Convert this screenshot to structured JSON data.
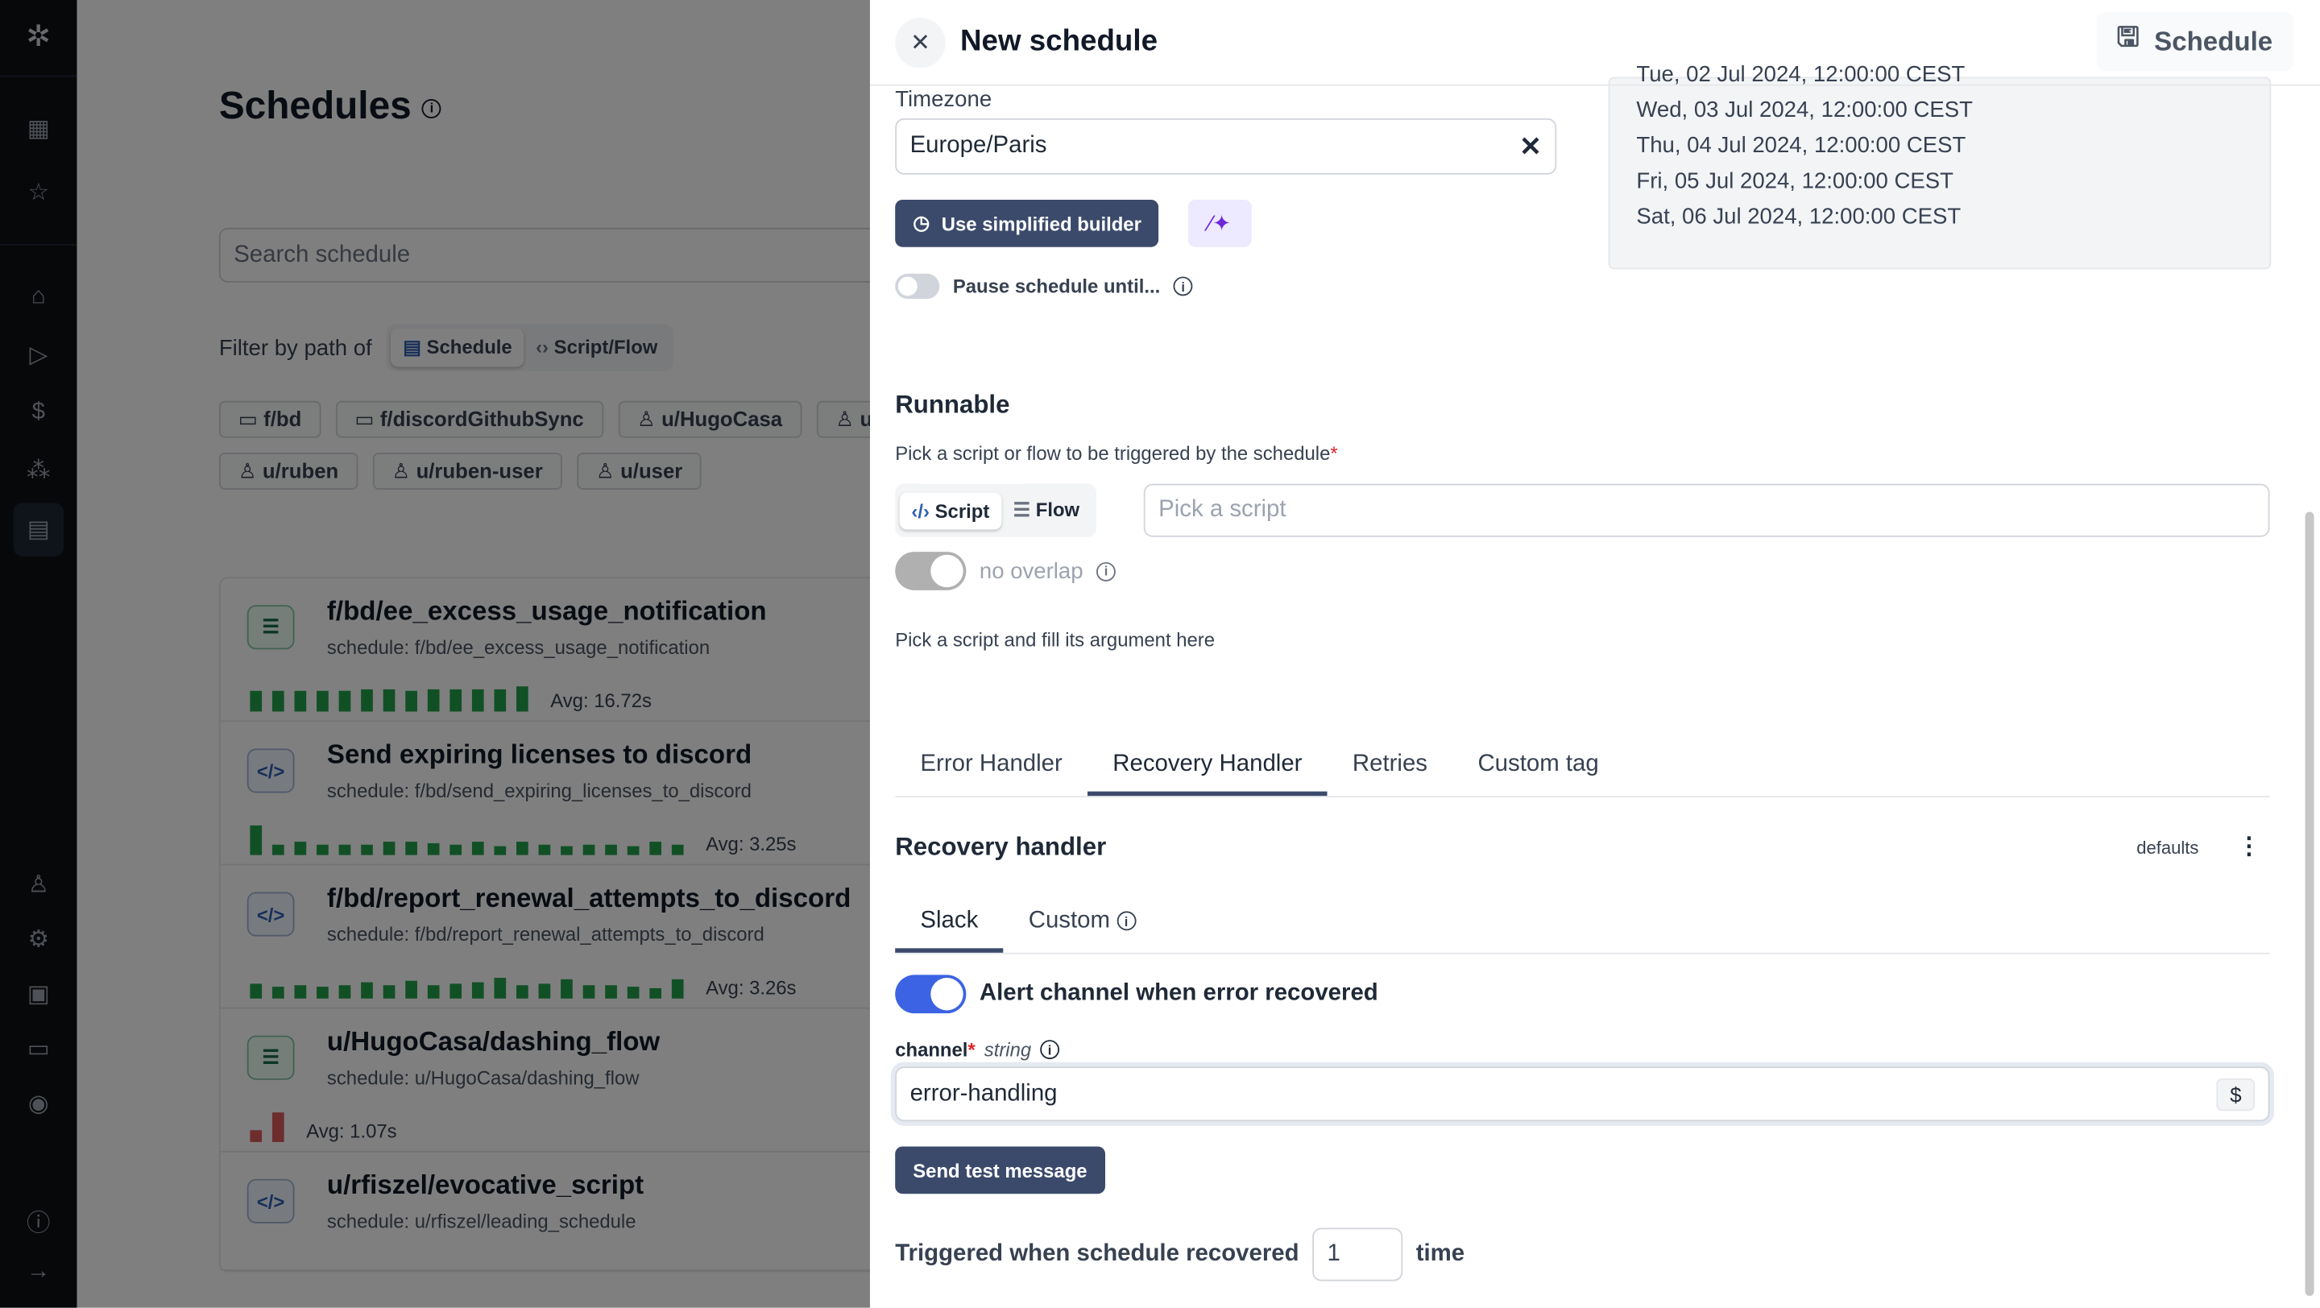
{
  "sidebar": {
    "top_icons": [
      "windmill-logo-icon",
      "building-icon",
      "star-icon"
    ],
    "nav_icons": [
      "home-icon",
      "play-icon",
      "dollar-icon",
      "resources-icon",
      "calendar-icon"
    ],
    "bottom_icons": [
      "user-icon",
      "gear-icon",
      "bot-icon",
      "folder-icon",
      "eye-icon",
      "help-icon",
      "arrow-right-icon"
    ],
    "active": "calendar-icon"
  },
  "page": {
    "title": "Schedules",
    "search_placeholder": "Search schedule",
    "filter_label": "Filter by path of",
    "filter_options": [
      "Schedule",
      "Script/Flow"
    ],
    "filter_selected": "Schedule",
    "paths": [
      {
        "icon": "folder",
        "label": "f/bd"
      },
      {
        "icon": "folder",
        "label": "f/discordGithubSync"
      },
      {
        "icon": "user",
        "label": "u/HugoCasa"
      },
      {
        "icon": "user",
        "label": "u"
      },
      {
        "icon": "user",
        "label": "u/ruben"
      },
      {
        "icon": "user",
        "label": "u/ruben-user"
      },
      {
        "icon": "user",
        "label": "u/user"
      }
    ],
    "schedules": [
      {
        "kind": "flow",
        "title": "f/bd/ee_excess_usage_notification",
        "subtitle": "schedule: f/bd/ee_excess_usage_notification",
        "avg": "Avg: 16.72s",
        "status": "success",
        "runs": [
          0.7,
          0.7,
          0.7,
          0.7,
          0.7,
          0.75,
          0.75,
          0.7,
          0.75,
          0.75,
          0.75,
          0.75,
          0.85
        ]
      },
      {
        "kind": "script",
        "title": "Send expiring licenses to discord",
        "subtitle": "schedule: f/bd/send_expiring_licenses_to_discord",
        "avg": "Avg: 3.25s",
        "status": "success",
        "runs": [
          1,
          0.35,
          0.45,
          0.35,
          0.35,
          0.35,
          0.45,
          0.45,
          0.4,
          0.35,
          0.45,
          0.3,
          0.45,
          0.35,
          0.3,
          0.35,
          0.35,
          0.3,
          0.45,
          0.35
        ]
      },
      {
        "kind": "script",
        "title": "f/bd/report_renewal_attempts_to_discord",
        "subtitle": "schedule: f/bd/report_renewal_attempts_to_discord",
        "avg": "Avg: 3.26s",
        "status": "success",
        "runs": [
          0.5,
          0.4,
          0.45,
          0.4,
          0.45,
          0.55,
          0.45,
          0.6,
          0.45,
          0.5,
          0.55,
          0.7,
          0.45,
          0.5,
          0.65,
          0.45,
          0.45,
          0.4,
          0.35,
          0.65
        ]
      },
      {
        "kind": "flow",
        "title": "u/HugoCasa/dashing_flow",
        "subtitle": "schedule: u/HugoCasa/dashing_flow",
        "avg": "Avg: 1.07s",
        "status": "failure",
        "runs": [
          0.4,
          1
        ]
      },
      {
        "kind": "script",
        "title": "u/rfiszel/evocative_script",
        "subtitle": "schedule: u/rfiszel/leading_schedule"
      }
    ]
  },
  "drawer": {
    "title": "New schedule",
    "save_label": "Schedule",
    "timezone_label": "Timezone",
    "timezone_value": "Europe/Paris",
    "simplified_builder_label": "Use simplified builder",
    "pause_label": "Pause schedule until...",
    "pause_enabled": false,
    "preview_dates": [
      "Tue, 02 Jul 2024, 12:00:00 CEST",
      "Wed, 03 Jul 2024, 12:00:00 CEST",
      "Thu, 04 Jul 2024, 12:00:00 CEST",
      "Fri, 05 Jul 2024, 12:00:00 CEST",
      "Sat, 06 Jul 2024, 12:00:00 CEST"
    ],
    "runnable": {
      "heading": "Runnable",
      "hint": "Pick a script or flow to be triggered by the schedule",
      "required_mark": "*",
      "kinds": [
        "Script",
        "Flow"
      ],
      "selected_kind": "Script",
      "picker_placeholder": "Pick a script",
      "no_overlap_label": "no overlap",
      "args_hint": "Pick a script and fill its argument here"
    },
    "tabs": [
      "Error Handler",
      "Recovery Handler",
      "Retries",
      "Custom tag"
    ],
    "active_tab": "Recovery Handler",
    "recovery": {
      "heading": "Recovery handler",
      "defaults_label": "defaults",
      "subtabs": [
        "Slack",
        "Custom"
      ],
      "active_subtab": "Slack",
      "alert_label": "Alert channel when error recovered",
      "alert_enabled": true,
      "channel_label": "channel",
      "channel_required": "*",
      "channel_type": "string",
      "channel_value": "error-handling",
      "send_test_label": "Send test message",
      "trigger_prefix": "Triggered when schedule recovered",
      "trigger_value": "1",
      "trigger_suffix": "time"
    }
  },
  "colors": {
    "accent": "#3b4a6b",
    "toggle_on": "#3b63e3",
    "success": "#22a04b",
    "failure": "#dc5b5b"
  }
}
